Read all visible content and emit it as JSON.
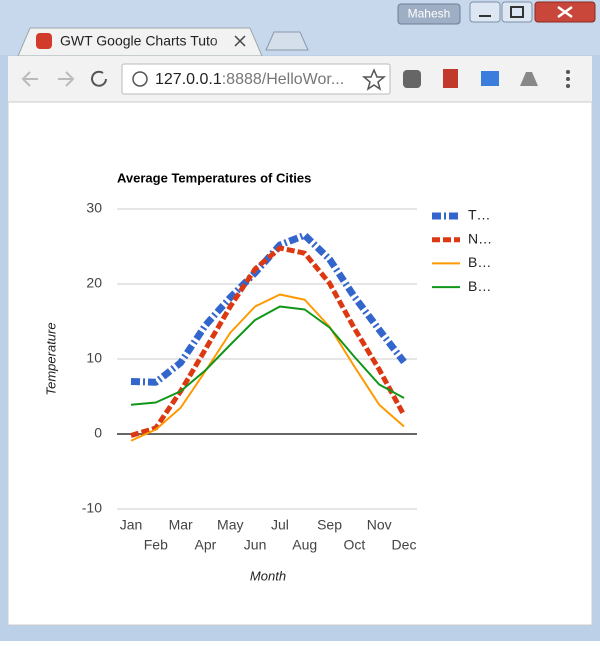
{
  "browser": {
    "user": "Mahesh",
    "tab_title": "GWT Google Charts Tuto",
    "url_host": "127.0.0.1",
    "url_path": ":8888/HelloWor..."
  },
  "chart_data": {
    "type": "line",
    "title": "Average Temperatures of Cities",
    "x_label": "Month",
    "y_label": "Temperature",
    "categories": [
      "Jan",
      "Feb",
      "Mar",
      "Apr",
      "May",
      "Jun",
      "Jul",
      "Aug",
      "Sep",
      "Oct",
      "Nov",
      "Dec"
    ],
    "ylim": [
      -10,
      30
    ],
    "yticks": [
      -10,
      0,
      10,
      20,
      30
    ],
    "grid": true,
    "legend": "right",
    "series": [
      {
        "name": "T…",
        "color": "#3366cc",
        "values": [
          7.0,
          6.9,
          9.5,
          14.5,
          18.2,
          21.5,
          25.2,
          26.5,
          23.3,
          18.3,
          13.9,
          9.6
        ]
      },
      {
        "name": "N…",
        "color": "#dc3912",
        "values": [
          -0.2,
          0.8,
          5.7,
          11.3,
          17.0,
          22.0,
          24.8,
          24.1,
          20.1,
          14.1,
          8.6,
          2.5
        ]
      },
      {
        "name": "B…",
        "color": "#ff9900",
        "values": [
          -0.9,
          0.6,
          3.5,
          8.4,
          13.5,
          17.0,
          18.6,
          17.9,
          14.3,
          9.0,
          3.9,
          1.0
        ]
      },
      {
        "name": "B…",
        "color": "#109618",
        "values": [
          3.9,
          4.2,
          5.7,
          8.5,
          11.9,
          15.2,
          17.0,
          16.6,
          14.2,
          10.3,
          6.6,
          4.8
        ]
      }
    ]
  }
}
